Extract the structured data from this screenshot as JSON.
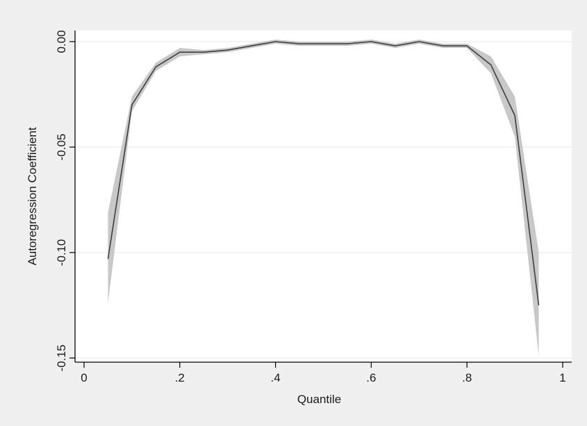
{
  "chart_data": {
    "type": "line",
    "title": "",
    "xlabel": "Quantile",
    "ylabel": "Autoregression Coefficient",
    "xlim": [
      0,
      1
    ],
    "ylim": [
      -0.15,
      0.005
    ],
    "x_ticks": [
      0,
      0.2,
      0.4,
      0.6,
      0.8,
      1
    ],
    "x_tick_labels": [
      "0",
      ".2",
      ".4",
      ".6",
      ".8",
      "1"
    ],
    "y_ticks": [
      0,
      -0.05,
      -0.1,
      -0.15
    ],
    "y_tick_labels": [
      "0.00",
      "-0.05",
      "-0.10",
      "-0.15"
    ],
    "grid": "horizontal",
    "legend": "none",
    "colors": {
      "line": "#3d3d3d",
      "band": "#c8c8c8",
      "plot_bg": "#ffffff",
      "outer_bg": "#f0f0f0",
      "grid": "#ececec"
    },
    "series": [
      {
        "x": [
          0.05,
          0.1,
          0.15,
          0.2,
          0.25,
          0.3,
          0.35,
          0.4,
          0.45,
          0.5,
          0.55,
          0.6,
          0.65,
          0.7,
          0.75,
          0.8,
          0.85,
          0.9,
          0.95
        ],
        "values": [
          -0.103,
          -0.03,
          -0.012,
          -0.005,
          -0.005,
          -0.004,
          -0.002,
          0.0,
          -0.001,
          -0.001,
          -0.001,
          0.0,
          -0.002,
          0.0,
          -0.002,
          -0.002,
          -0.011,
          -0.035,
          -0.125
        ],
        "lower": [
          -0.124,
          -0.033,
          -0.014,
          -0.007,
          -0.006,
          -0.005,
          -0.003,
          -0.001,
          -0.002,
          -0.002,
          -0.002,
          -0.001,
          -0.003,
          -0.001,
          -0.003,
          -0.003,
          -0.015,
          -0.045,
          -0.149
        ],
        "upper": [
          -0.081,
          -0.026,
          -0.01,
          -0.003,
          -0.004,
          -0.003,
          -0.001,
          0.001,
          0.0,
          0.0,
          0.0,
          0.001,
          -0.001,
          0.001,
          -0.001,
          -0.001,
          -0.007,
          -0.026,
          -0.1
        ]
      }
    ]
  }
}
